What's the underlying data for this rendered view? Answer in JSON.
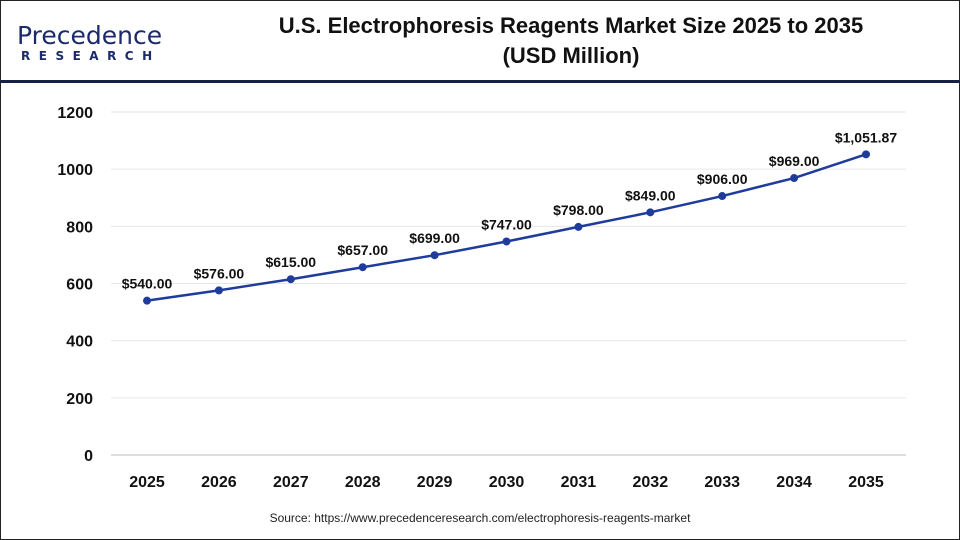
{
  "logo": {
    "line1": "Precedence",
    "line2": "RESEARCH"
  },
  "title_line1": "U.S. Electrophoresis Reagents Market Size 2025 to 2035",
  "title_line2": "(USD Million)",
  "source": "Source: https://www.precedenceresearch.com/electrophoresis-reagents-market",
  "chart_data": {
    "type": "line",
    "title": "U.S. Electrophoresis Reagents Market Size 2025 to 2035 (USD Million)",
    "categories": [
      "2025",
      "2026",
      "2027",
      "2028",
      "2029",
      "2030",
      "2031",
      "2032",
      "2033",
      "2034",
      "2035"
    ],
    "values": [
      540.0,
      576.0,
      615.0,
      657.0,
      699.0,
      747.0,
      798.0,
      849.0,
      906.0,
      969.0,
      1051.87
    ],
    "data_labels": [
      "$540.00",
      "$576.00",
      "$615.00",
      "$657.00",
      "$699.00",
      "$747.00",
      "$798.00",
      "$849.00",
      "$906.00",
      "$969.00",
      "$1,051.87"
    ],
    "ylim": [
      0,
      1200
    ],
    "yticks": [
      0,
      200,
      400,
      600,
      800,
      1000,
      1200
    ],
    "grid": true,
    "color": "#1f3c9c"
  }
}
